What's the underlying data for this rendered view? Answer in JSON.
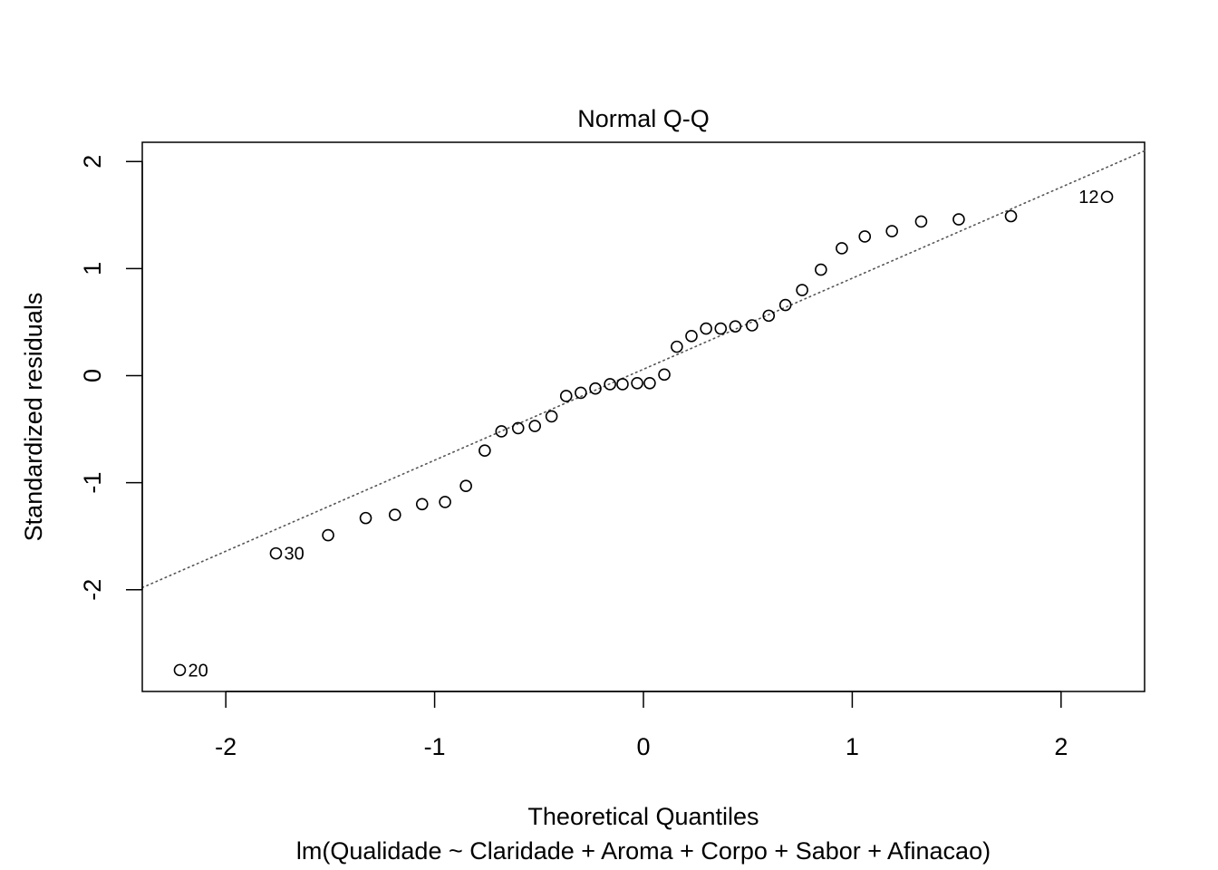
{
  "chart_data": {
    "type": "scatter",
    "title": "Normal Q-Q",
    "xlabel": "Theoretical Quantiles",
    "subtitle": "lm(Qualidade ~ Claridade + Aroma + Corpo + Sabor + Afinacao)",
    "ylabel": "Standardized residuals",
    "xlim": [
      -2.4,
      2.4
    ],
    "ylim": [
      -2.95,
      2.18
    ],
    "xticks": [
      -2,
      -1,
      0,
      1,
      2
    ],
    "yticks": [
      -2,
      -1,
      0,
      1,
      2
    ],
    "grid": false,
    "reference_line": {
      "style": "dotted",
      "points": [
        [
          -2.4,
          -1.98
        ],
        [
          2.4,
          2.1
        ]
      ]
    },
    "points": [
      {
        "x": -2.22,
        "y": -2.75,
        "label": "20"
      },
      {
        "x": -1.76,
        "y": -1.66,
        "label": "30"
      },
      {
        "x": -1.51,
        "y": -1.49
      },
      {
        "x": -1.33,
        "y": -1.33
      },
      {
        "x": -1.19,
        "y": -1.3
      },
      {
        "x": -1.06,
        "y": -1.2
      },
      {
        "x": -0.95,
        "y": -1.18
      },
      {
        "x": -0.85,
        "y": -1.03
      },
      {
        "x": -0.76,
        "y": -0.7
      },
      {
        "x": -0.68,
        "y": -0.52
      },
      {
        "x": -0.6,
        "y": -0.49
      },
      {
        "x": -0.52,
        "y": -0.47
      },
      {
        "x": -0.44,
        "y": -0.38
      },
      {
        "x": -0.37,
        "y": -0.19
      },
      {
        "x": -0.3,
        "y": -0.16
      },
      {
        "x": -0.23,
        "y": -0.12
      },
      {
        "x": -0.16,
        "y": -0.08
      },
      {
        "x": -0.1,
        "y": -0.08
      },
      {
        "x": -0.03,
        "y": -0.07
      },
      {
        "x": 0.03,
        "y": -0.07
      },
      {
        "x": 0.1,
        "y": 0.01
      },
      {
        "x": 0.16,
        "y": 0.27
      },
      {
        "x": 0.23,
        "y": 0.37
      },
      {
        "x": 0.3,
        "y": 0.44
      },
      {
        "x": 0.37,
        "y": 0.44
      },
      {
        "x": 0.44,
        "y": 0.46
      },
      {
        "x": 0.52,
        "y": 0.47
      },
      {
        "x": 0.6,
        "y": 0.56
      },
      {
        "x": 0.68,
        "y": 0.66
      },
      {
        "x": 0.76,
        "y": 0.8
      },
      {
        "x": 0.85,
        "y": 0.99
      },
      {
        "x": 0.95,
        "y": 1.19
      },
      {
        "x": 1.06,
        "y": 1.3
      },
      {
        "x": 1.19,
        "y": 1.35
      },
      {
        "x": 1.33,
        "y": 1.44
      },
      {
        "x": 1.51,
        "y": 1.46
      },
      {
        "x": 1.76,
        "y": 1.49
      },
      {
        "x": 2.22,
        "y": 1.67,
        "label": "12"
      }
    ]
  }
}
